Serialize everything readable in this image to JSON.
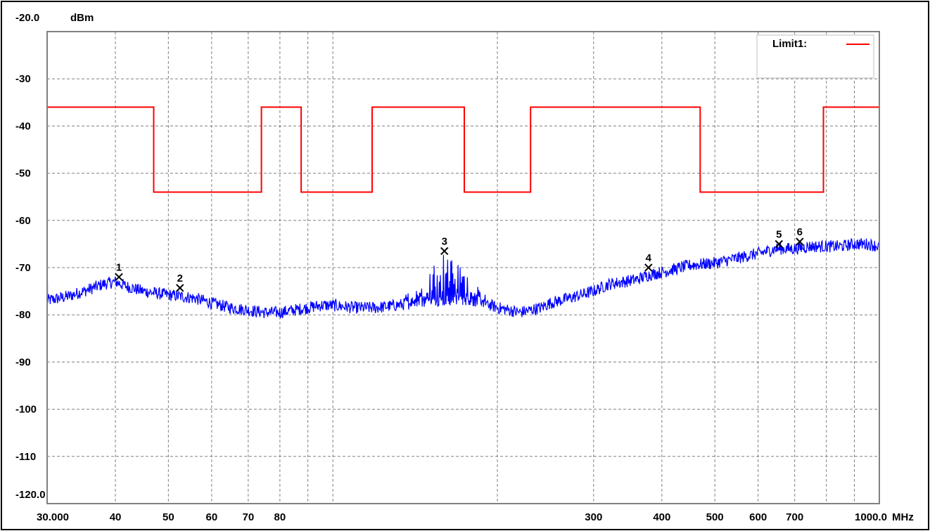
{
  "chart_data": {
    "type": "line",
    "title": "",
    "ylabel": "dBm",
    "xunit": "MHz",
    "x_scale": "log",
    "xlim": [
      30,
      1000
    ],
    "ylim": [
      -120,
      -20
    ],
    "grid": true,
    "legend_position": "top-right",
    "y_tick_labels": [
      {
        "value": -20,
        "text": "-20.0"
      },
      {
        "value": -30,
        "text": "-30"
      },
      {
        "value": -40,
        "text": "-40"
      },
      {
        "value": -50,
        "text": "-50"
      },
      {
        "value": -60,
        "text": "-60"
      },
      {
        "value": -70,
        "text": "-70"
      },
      {
        "value": -80,
        "text": "-80"
      },
      {
        "value": -90,
        "text": "-90"
      },
      {
        "value": -100,
        "text": "-100"
      },
      {
        "value": -110,
        "text": "-110"
      },
      {
        "value": -120,
        "text": "-120.0"
      }
    ],
    "x_tick_labels": [
      {
        "value": 30,
        "text": "30.000"
      },
      {
        "value": 40,
        "text": "40"
      },
      {
        "value": 50,
        "text": "50"
      },
      {
        "value": 60,
        "text": "60"
      },
      {
        "value": 70,
        "text": "70"
      },
      {
        "value": 80,
        "text": "80"
      },
      {
        "value": 300,
        "text": "300"
      },
      {
        "value": 400,
        "text": "400"
      },
      {
        "value": 500,
        "text": "500"
      },
      {
        "value": 600,
        "text": "600"
      },
      {
        "value": 700,
        "text": "700"
      },
      {
        "value": 1000,
        "text": "1000.0"
      }
    ],
    "x_gridlines": [
      30,
      40,
      50,
      60,
      70,
      80,
      90,
      100,
      200,
      300,
      400,
      500,
      600,
      700,
      800,
      900,
      1000
    ],
    "limit_series": {
      "name": "Limit1:",
      "color": "#ff0000",
      "points": [
        [
          30,
          -36
        ],
        [
          47,
          -36
        ],
        [
          47,
          -54
        ],
        [
          74,
          -54
        ],
        [
          74,
          -36
        ],
        [
          87.5,
          -36
        ],
        [
          87.5,
          -54
        ],
        [
          118,
          -54
        ],
        [
          118,
          -36
        ],
        [
          174,
          -36
        ],
        [
          174,
          -54
        ],
        [
          230,
          -54
        ],
        [
          230,
          -36
        ],
        [
          470,
          -36
        ],
        [
          470,
          -54
        ],
        [
          790,
          -54
        ],
        [
          790,
          -36
        ],
        [
          1000,
          -36
        ]
      ]
    },
    "measurement_series": {
      "color": "#0000ff",
      "points": [
        [
          30,
          -77
        ],
        [
          33,
          -76
        ],
        [
          36,
          -74.5
        ],
        [
          38,
          -73.5
        ],
        [
          40,
          -73
        ],
        [
          42,
          -74
        ],
        [
          45,
          -75
        ],
        [
          48,
          -75.5
        ],
        [
          52,
          -76
        ],
        [
          56,
          -76.5
        ],
        [
          60,
          -77.5
        ],
        [
          65,
          -78.5
        ],
        [
          70,
          -79
        ],
        [
          75,
          -79.5
        ],
        [
          80,
          -79.5
        ],
        [
          85,
          -79
        ],
        [
          90,
          -78.5
        ],
        [
          95,
          -78
        ],
        [
          100,
          -78
        ],
        [
          110,
          -78.5
        ],
        [
          120,
          -78.5
        ],
        [
          130,
          -78
        ],
        [
          140,
          -77.5
        ],
        [
          150,
          -77
        ],
        [
          160,
          -77
        ],
        [
          170,
          -76.5
        ],
        [
          180,
          -77
        ],
        [
          190,
          -77.5
        ],
        [
          200,
          -78.5
        ],
        [
          210,
          -79
        ],
        [
          220,
          -79.5
        ],
        [
          230,
          -79
        ],
        [
          240,
          -78.5
        ],
        [
          250,
          -77.5
        ],
        [
          260,
          -77
        ],
        [
          280,
          -76
        ],
        [
          300,
          -75
        ],
        [
          320,
          -73.5
        ],
        [
          340,
          -73
        ],
        [
          360,
          -72.5
        ],
        [
          380,
          -71.5
        ],
        [
          400,
          -71
        ],
        [
          450,
          -69.5
        ],
        [
          500,
          -69
        ],
        [
          550,
          -68
        ],
        [
          600,
          -67
        ],
        [
          650,
          -66
        ],
        [
          700,
          -66
        ],
        [
          750,
          -65.5
        ],
        [
          800,
          -65.5
        ],
        [
          850,
          -65.5
        ],
        [
          900,
          -65
        ],
        [
          950,
          -65
        ],
        [
          1000,
          -65.5
        ]
      ]
    },
    "markers": [
      {
        "label": "1",
        "x": 40.6,
        "y": -72
      },
      {
        "label": "2",
        "x": 52.5,
        "y": -74.3
      },
      {
        "label": "3",
        "x": 160,
        "y": -66.5
      },
      {
        "label": "4",
        "x": 378,
        "y": -70
      },
      {
        "label": "5",
        "x": 655,
        "y": -65
      },
      {
        "label": "6",
        "x": 715,
        "y": -64.5
      }
    ]
  }
}
